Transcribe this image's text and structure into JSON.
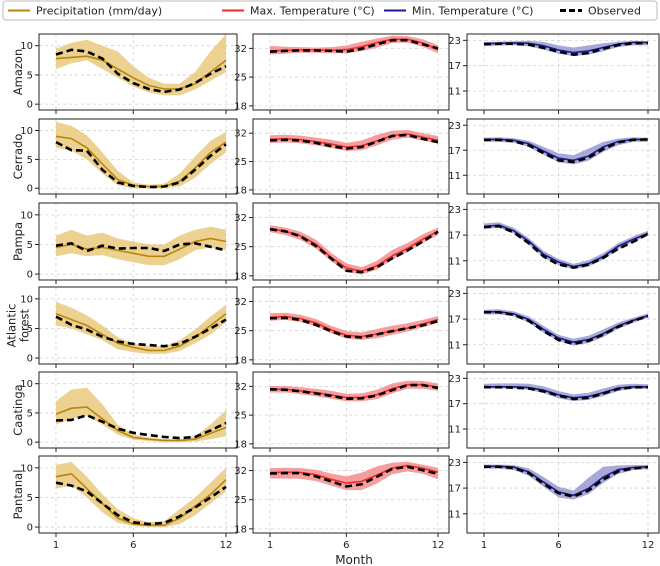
{
  "chart_data": {
    "type": "line",
    "xlabel": "Month",
    "x": [
      1,
      2,
      3,
      4,
      5,
      6,
      7,
      8,
      9,
      10,
      11,
      12
    ],
    "xticks": [
      1,
      6,
      12
    ],
    "grid": true,
    "legend_position": "top",
    "legend": [
      {
        "key": "precip",
        "label": "Precipitation (mm/day)",
        "color": "#b8860b",
        "style": "solid"
      },
      {
        "key": "tmax",
        "label": "Max. Temperature (°C)",
        "color": "#ee2a2a",
        "style": "solid"
      },
      {
        "key": "tmin",
        "label": "Min. Temperature (°C)",
        "color": "#1c1c8c",
        "style": "solid"
      },
      {
        "key": "obs",
        "label": "Observed",
        "color": "#000000",
        "style": "dashed"
      }
    ],
    "columns": [
      {
        "key": "precip",
        "yticks": [
          0,
          5,
          10
        ],
        "ylim": [
          -1,
          12
        ],
        "line": "#b8860b",
        "band": "#e9c97e"
      },
      {
        "key": "tmax",
        "yticks": [
          18,
          25,
          32
        ],
        "ylim": [
          17,
          35.5
        ],
        "line": "#ee2a2a",
        "band": "#f48c8c"
      },
      {
        "key": "tmin",
        "yticks": [
          11,
          17,
          23
        ],
        "ylim": [
          6.5,
          24.5
        ],
        "line": "#1c1c8c",
        "band": "#9a9ad2"
      }
    ],
    "regions": [
      {
        "name": "Amazon",
        "precip": {
          "model": [
            7.8,
            8.0,
            8.2,
            7.5,
            6.0,
            4.5,
            3.2,
            2.6,
            2.6,
            3.5,
            5.5,
            7.5
          ],
          "low": [
            6,
            7,
            7.5,
            6,
            4.5,
            3,
            2,
            1.5,
            1.5,
            2.5,
            4,
            5.5
          ],
          "high": [
            9.5,
            10.5,
            11,
            10,
            9,
            6.5,
            4.5,
            3.5,
            3.5,
            5.5,
            9,
            12
          ],
          "obs": [
            8.5,
            9.3,
            9.0,
            7.8,
            5.2,
            3.6,
            2.6,
            2.1,
            2.5,
            3.6,
            5.2,
            6.5
          ]
        },
        "tmax": {
          "model": [
            31.4,
            31.5,
            31.6,
            31.6,
            31.5,
            31.7,
            32.4,
            33.4,
            34.2,
            34.2,
            33.3,
            31.7
          ],
          "low": [
            30.5,
            30.7,
            30.9,
            30.9,
            30.8,
            30.8,
            31.3,
            32.2,
            33.3,
            33.4,
            32.4,
            30.8
          ],
          "high": [
            32.6,
            32.4,
            32.3,
            32.2,
            32.3,
            32.7,
            33.6,
            34.4,
            35.1,
            35.0,
            34.2,
            32.8
          ],
          "obs": [
            31.2,
            31.4,
            31.5,
            31.5,
            31.4,
            31.2,
            31.9,
            33.0,
            34.0,
            34.0,
            33.0,
            32.0
          ]
        },
        "tmin": {
          "model": [
            22.2,
            22.3,
            22.4,
            22.3,
            21.7,
            20.7,
            20.1,
            20.5,
            21.3,
            22.1,
            22.5,
            22.5
          ],
          "low": [
            21.6,
            21.7,
            21.8,
            21.6,
            20.8,
            19.8,
            19.3,
            19.6,
            20.4,
            21.4,
            21.8,
            21.8
          ],
          "high": [
            22.6,
            22.7,
            22.8,
            22.9,
            22.6,
            21.8,
            21.3,
            21.8,
            22.3,
            22.7,
            22.9,
            22.8
          ],
          "obs": [
            22.1,
            22.2,
            22.2,
            22.0,
            21.2,
            20.3,
            19.6,
            20.0,
            21.0,
            21.9,
            22.3,
            22.4
          ]
        }
      },
      {
        "name": "Cerrado",
        "precip": {
          "model": [
            9.0,
            8.6,
            7.0,
            4.2,
            1.5,
            0.5,
            0.3,
            0.3,
            1.2,
            3.5,
            6.2,
            8.0
          ],
          "low": [
            7,
            6.5,
            5,
            2.5,
            0.5,
            0,
            0,
            0,
            0.3,
            1.8,
            4.2,
            6.2
          ],
          "high": [
            11.5,
            10.8,
            9.2,
            6.2,
            3,
            1,
            0.6,
            0.8,
            2.5,
            5.5,
            8.2,
            9.8
          ],
          "obs": [
            8.0,
            6.6,
            6.5,
            3.2,
            1.0,
            0.4,
            0.2,
            0.3,
            1.0,
            3.2,
            5.6,
            7.6
          ]
        },
        "tmax": {
          "model": [
            30.5,
            30.6,
            30.4,
            29.9,
            29.3,
            28.6,
            28.9,
            30.1,
            31.4,
            31.8,
            31.0,
            30.3
          ],
          "low": [
            29.6,
            29.7,
            29.5,
            29.0,
            28.4,
            27.6,
            27.8,
            29.0,
            30.4,
            30.9,
            30.2,
            29.4
          ],
          "high": [
            31.5,
            31.6,
            31.4,
            30.9,
            30.4,
            29.6,
            30.2,
            31.6,
            32.6,
            32.8,
            32.0,
            31.3
          ],
          "obs": [
            30.2,
            30.4,
            30.2,
            29.6,
            28.8,
            28.2,
            28.6,
            29.9,
            31.3,
            31.6,
            30.6,
            29.8
          ]
        },
        "tmin": {
          "model": [
            19.6,
            19.6,
            19.4,
            18.6,
            16.8,
            15.1,
            14.6,
            15.6,
            17.8,
            19.1,
            19.6,
            19.6
          ],
          "low": [
            19.0,
            19.0,
            18.8,
            17.8,
            15.9,
            14.1,
            13.6,
            14.5,
            16.6,
            18.2,
            19.0,
            19.0
          ],
          "high": [
            20.0,
            20.1,
            19.9,
            19.3,
            17.8,
            16.3,
            15.8,
            17.4,
            19.0,
            19.8,
            20.1,
            20.0
          ],
          "obs": [
            19.5,
            19.5,
            19.2,
            18.2,
            16.3,
            14.6,
            14.2,
            15.2,
            17.3,
            18.9,
            19.5,
            19.6
          ]
        }
      },
      {
        "name": "Pampa",
        "precip": {
          "model": [
            4.5,
            5.0,
            4.2,
            4.5,
            4.0,
            3.5,
            3.0,
            3.0,
            4.2,
            5.5,
            6.0,
            5.5
          ],
          "low": [
            3,
            3.5,
            3,
            3.2,
            2.5,
            2,
            1.5,
            1.5,
            2.5,
            4,
            4.5,
            4
          ],
          "high": [
            6.5,
            7.5,
            6.5,
            7,
            6,
            5.5,
            5,
            5,
            6.5,
            7.5,
            8,
            7.5
          ],
          "obs": [
            4.8,
            5.2,
            3.9,
            4.8,
            4.3,
            4.4,
            4.4,
            3.9,
            5.0,
            5.2,
            4.6,
            4.0
          ]
        },
        "tmax": {
          "model": [
            29.3,
            28.7,
            27.6,
            25.6,
            22.4,
            19.9,
            19.1,
            20.4,
            22.8,
            24.6,
            26.8,
            28.7
          ],
          "low": [
            28.5,
            27.8,
            26.6,
            24.6,
            21.5,
            19.0,
            18.3,
            19.5,
            21.9,
            23.7,
            25.9,
            27.8
          ],
          "high": [
            30.2,
            29.6,
            28.6,
            26.7,
            23.5,
            21.0,
            20.1,
            21.6,
            24.2,
            25.9,
            28.0,
            29.6
          ],
          "obs": [
            29.2,
            28.7,
            27.5,
            25.2,
            22.2,
            19.2,
            18.9,
            20.1,
            22.2,
            24.1,
            26.2,
            28.6
          ]
        },
        "tmin": {
          "model": [
            19.0,
            19.3,
            18.0,
            15.6,
            12.5,
            10.7,
            9.6,
            10.3,
            12.0,
            14.4,
            16.0,
            17.4
          ],
          "low": [
            18.4,
            18.7,
            17.4,
            14.9,
            11.7,
            10.0,
            9.0,
            9.6,
            11.3,
            13.7,
            15.4,
            16.9
          ],
          "high": [
            19.7,
            20.0,
            18.7,
            16.3,
            13.3,
            11.4,
            10.3,
            11.1,
            12.8,
            15.1,
            16.7,
            18.0
          ],
          "obs": [
            18.9,
            19.1,
            17.6,
            15.1,
            12.0,
            10.1,
            9.4,
            10.1,
            11.7,
            13.8,
            15.4,
            17.3
          ]
        }
      },
      {
        "name": "Atlantic\nforest",
        "precip": {
          "model": [
            7.5,
            6.5,
            5.5,
            4.0,
            2.5,
            1.8,
            1.3,
            1.3,
            2.0,
            3.5,
            5.5,
            7.5
          ],
          "low": [
            5.5,
            5,
            4,
            3,
            1.5,
            1,
            0.7,
            0.7,
            1.2,
            2.5,
            4,
            6
          ],
          "high": [
            9.5,
            8.5,
            7.2,
            5.5,
            3.5,
            2.5,
            2,
            2,
            3,
            4.8,
            7,
            9
          ],
          "obs": [
            7.0,
            5.6,
            4.8,
            3.6,
            2.8,
            2.4,
            2.2,
            2.0,
            2.4,
            3.6,
            5.0,
            6.5
          ]
        },
        "tmax": {
          "model": [
            28.2,
            28.4,
            27.9,
            26.9,
            25.2,
            23.9,
            23.6,
            24.2,
            24.9,
            25.6,
            26.6,
            27.7
          ],
          "low": [
            27.4,
            27.6,
            27.1,
            26.1,
            24.4,
            23.1,
            22.8,
            23.2,
            24.0,
            24.8,
            25.8,
            26.9
          ],
          "high": [
            29.2,
            29.3,
            28.8,
            27.8,
            26.2,
            24.9,
            24.6,
            25.4,
            26.2,
            26.8,
            27.6,
            28.5
          ],
          "obs": [
            28.0,
            28.1,
            27.6,
            26.4,
            24.9,
            23.6,
            23.4,
            24.1,
            24.9,
            25.6,
            26.3,
            27.3
          ]
        },
        "tmin": {
          "model": [
            18.7,
            18.7,
            18.2,
            16.9,
            14.6,
            12.6,
            11.6,
            12.2,
            13.6,
            15.4,
            16.7,
            17.8
          ],
          "low": [
            18.1,
            18.1,
            17.6,
            16.2,
            13.8,
            11.9,
            10.8,
            11.4,
            12.8,
            14.7,
            16.1,
            17.3
          ],
          "high": [
            19.2,
            19.3,
            18.8,
            17.6,
            15.4,
            13.3,
            12.4,
            13.1,
            14.6,
            16.2,
            17.3,
            18.3
          ],
          "obs": [
            18.6,
            18.6,
            18.0,
            16.6,
            14.2,
            12.1,
            11.2,
            11.9,
            13.4,
            15.2,
            16.6,
            17.7
          ]
        }
      },
      {
        "name": "Caatinga",
        "precip": {
          "model": [
            4.8,
            5.8,
            6.0,
            4.0,
            2.0,
            0.8,
            0.5,
            0.3,
            0.3,
            0.5,
            1.5,
            2.5
          ],
          "low": [
            3,
            4,
            4.5,
            3,
            1.3,
            0.4,
            0.2,
            0,
            0,
            0.1,
            0.5,
            1
          ],
          "high": [
            7,
            9,
            9.3,
            6.5,
            3,
            1.3,
            0.8,
            0.5,
            0.5,
            1,
            3,
            5.5
          ],
          "obs": [
            3.7,
            3.8,
            4.6,
            3.5,
            2.3,
            1.6,
            1.2,
            0.9,
            0.7,
            0.9,
            2.0,
            3.3
          ]
        },
        "tmax": {
          "model": [
            31.3,
            31.3,
            30.9,
            30.5,
            29.9,
            29.3,
            29.3,
            30.0,
            31.4,
            32.4,
            32.4,
            31.8
          ],
          "low": [
            30.5,
            30.5,
            30.1,
            29.6,
            29.0,
            28.4,
            28.4,
            28.9,
            30.3,
            31.4,
            31.4,
            30.9
          ],
          "high": [
            32.1,
            32.1,
            31.8,
            31.4,
            30.9,
            30.2,
            30.3,
            31.2,
            32.7,
            33.4,
            33.3,
            32.7
          ],
          "obs": [
            31.3,
            31.2,
            30.8,
            30.3,
            29.7,
            29.0,
            29.1,
            29.8,
            31.1,
            32.3,
            32.3,
            31.6
          ]
        },
        "tmin": {
          "model": [
            21.0,
            21.0,
            21.0,
            20.8,
            20.2,
            19.1,
            18.4,
            18.7,
            19.6,
            20.7,
            21.0,
            21.0
          ],
          "low": [
            20.6,
            20.6,
            20.6,
            20.3,
            19.5,
            18.3,
            17.6,
            17.9,
            18.8,
            20.0,
            20.5,
            20.5
          ],
          "high": [
            21.7,
            21.8,
            21.8,
            21.7,
            21.1,
            20.0,
            19.2,
            19.6,
            20.6,
            21.5,
            21.7,
            21.6
          ],
          "obs": [
            20.9,
            20.9,
            20.8,
            20.6,
            19.9,
            18.9,
            18.1,
            18.4,
            19.4,
            20.5,
            20.9,
            20.9
          ]
        }
      },
      {
        "name": "Pantanal",
        "precip": {
          "model": [
            8.5,
            9.0,
            6.5,
            4.0,
            1.5,
            0.5,
            0.3,
            0.3,
            1.5,
            3.5,
            5.5,
            8.0
          ],
          "low": [
            6.5,
            7,
            5,
            2.5,
            0.7,
            0.2,
            0,
            0,
            0.5,
            2,
            4,
            6
          ],
          "high": [
            10.5,
            11,
            8.5,
            5.5,
            3,
            1.5,
            0.8,
            1,
            3,
            5,
            7.5,
            10
          ],
          "obs": [
            7.5,
            7.0,
            6.0,
            4.0,
            2.0,
            0.8,
            0.5,
            0.7,
            1.8,
            3.3,
            5.0,
            6.8
          ]
        },
        "tmax": {
          "model": [
            31.5,
            31.6,
            31.5,
            31.0,
            29.9,
            29.0,
            29.4,
            30.9,
            32.6,
            33.2,
            32.6,
            31.6
          ],
          "low": [
            30.1,
            30.1,
            30.0,
            29.5,
            28.4,
            27.3,
            27.3,
            28.9,
            31.1,
            31.8,
            31.2,
            29.9
          ],
          "high": [
            32.6,
            32.7,
            32.6,
            32.2,
            31.3,
            30.6,
            31.5,
            33.0,
            33.9,
            34.1,
            33.4,
            32.7
          ],
          "obs": [
            31.3,
            31.4,
            31.4,
            30.6,
            29.4,
            28.2,
            28.7,
            30.5,
            32.4,
            32.9,
            32.1,
            31.2
          ]
        },
        "tmin": {
          "model": [
            22.1,
            22.1,
            21.9,
            20.8,
            18.4,
            16.1,
            15.3,
            16.9,
            19.6,
            21.3,
            21.8,
            22.0
          ],
          "low": [
            21.5,
            21.5,
            21.2,
            19.9,
            17.3,
            14.8,
            14.3,
            15.6,
            18.2,
            20.3,
            21.2,
            21.4
          ],
          "high": [
            22.5,
            22.5,
            22.4,
            21.6,
            19.6,
            17.3,
            16.4,
            19.4,
            22.0,
            22.3,
            22.4,
            22.4
          ],
          "obs": [
            22.0,
            22.0,
            21.7,
            20.5,
            18.0,
            15.8,
            15.0,
            16.4,
            19.0,
            20.9,
            21.6,
            21.9
          ]
        }
      }
    ]
  }
}
